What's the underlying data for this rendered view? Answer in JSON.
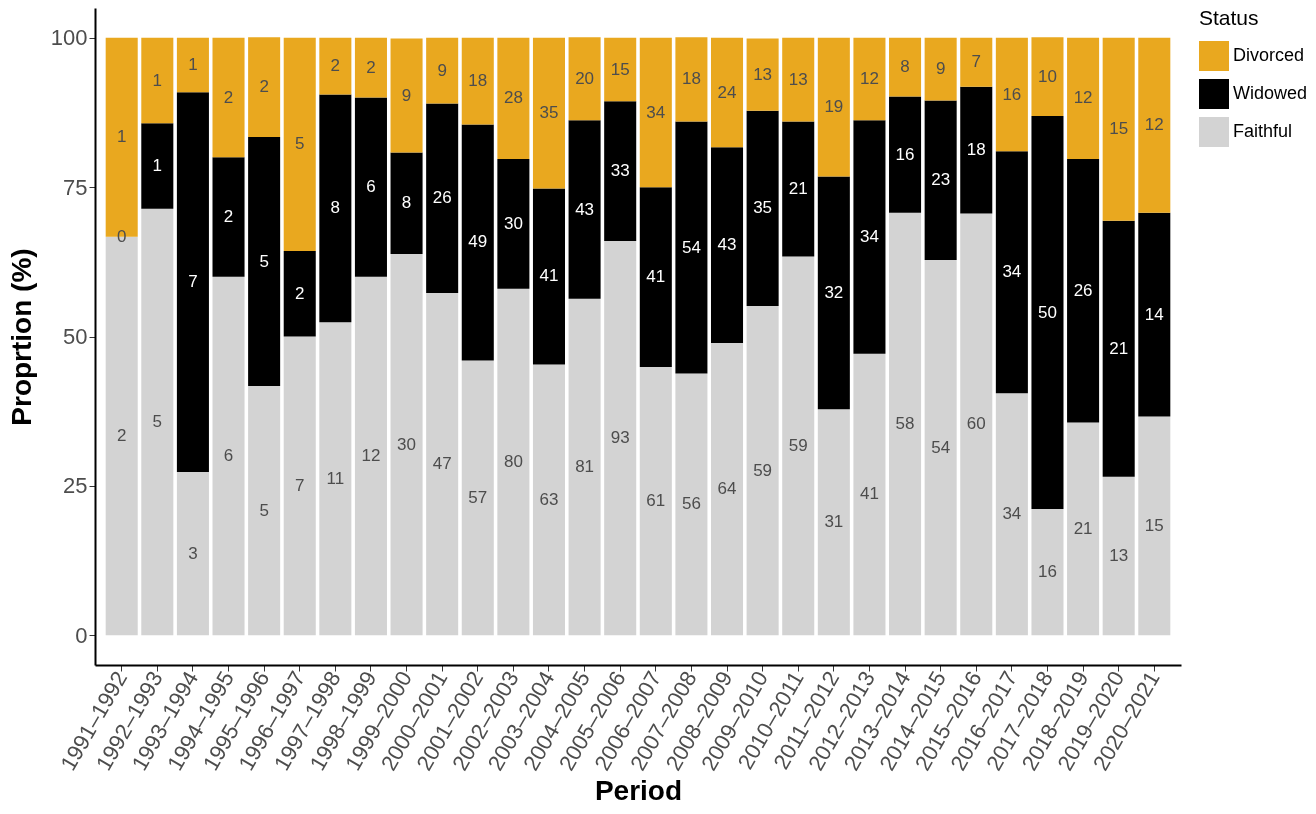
{
  "chart_data": {
    "type": "bar",
    "stacked": true,
    "xlabel": "Period",
    "ylabel": "Proprtion (%)",
    "legend_title": "Status",
    "legend": "right",
    "grid": false,
    "categories": [
      "1991–1992",
      "1992–1993",
      "1993–1994",
      "1994–1995",
      "1995–1996",
      "1996–1997",
      "1997–1998",
      "1998–1999",
      "1999–2000",
      "2000–2001",
      "2001–2002",
      "2002–2003",
      "2003–2004",
      "2004–2005",
      "2005–2006",
      "2006–2007",
      "2007–2008",
      "2008–2009",
      "2009–2010",
      "2010–2011",
      "2011–2012",
      "2012–2013",
      "2013–2014",
      "2014–2015",
      "2015–2016",
      "2016–2017",
      "2017–2018",
      "2018–2019",
      "2019–2020",
      "2020–2021"
    ],
    "ylim": [
      -5,
      105
    ],
    "yticks": [
      0,
      25,
      50,
      75,
      100
    ],
    "series": [
      {
        "name": "Faithful",
        "color": "#d3d3d3",
        "values": [
          66.7,
          71.4,
          27.3,
          60,
          41.7,
          50,
          52.4,
          60,
          63.8,
          57.3,
          46.0,
          58.0,
          45.3,
          56.3,
          66.0,
          44.9,
          43.8,
          48.9,
          55.1,
          63.4,
          37.8,
          47.1,
          70.7,
          62.8,
          70.6,
          40.5,
          21.1,
          35.6,
          26.5,
          36.6
        ]
      },
      {
        "name": "Widowed",
        "color": "#000000",
        "values": [
          0,
          14.3,
          63.6,
          20,
          41.7,
          14.3,
          38.1,
          30,
          17.0,
          31.7,
          39.5,
          21.7,
          29.5,
          29.9,
          23.4,
          30.1,
          42.2,
          32.8,
          32.7,
          22.6,
          39.0,
          39.1,
          19.5,
          26.7,
          21.2,
          40.5,
          65.8,
          44.1,
          42.9,
          34.1
        ]
      },
      {
        "name": "Divorced",
        "color": "#e9a81f",
        "values": [
          33.3,
          14.3,
          9.1,
          20,
          16.7,
          35.7,
          9.5,
          10,
          19.1,
          11.0,
          14.5,
          20.3,
          25.2,
          13.9,
          10.6,
          25.0,
          14.1,
          18.3,
          12.1,
          14.0,
          23.2,
          13.8,
          9.8,
          10.5,
          8.2,
          19.0,
          13.2,
          20.3,
          30.6,
          29.3
        ]
      }
    ],
    "annotations": [
      "2",
      "0",
      "1",
      "5",
      "1",
      "1",
      "3",
      "7",
      "1",
      "6",
      "2",
      "2",
      "5",
      "5",
      "2",
      "7",
      "2",
      "5",
      "11",
      "8",
      "2",
      "12",
      "6",
      "2",
      "30",
      "8",
      "9",
      "47",
      "26",
      "9",
      "57",
      "49",
      "18",
      "80",
      "30",
      "28",
      "63",
      "41",
      "35",
      "81",
      "43",
      "20",
      "93",
      "33",
      "15",
      "61",
      "41",
      "34",
      "56",
      "54",
      "18",
      "64",
      "43",
      "24",
      "59",
      "35",
      "13",
      "59",
      "21",
      "13",
      "31",
      "32",
      "19",
      "41",
      "34",
      "12",
      "58",
      "16",
      "8",
      "54",
      "23",
      "9",
      "60",
      "18",
      "7",
      "34",
      "34",
      "16",
      "16",
      "50",
      "10",
      "21",
      "26",
      "12",
      "13",
      "21",
      "15",
      "15",
      "14",
      "12"
    ]
  }
}
